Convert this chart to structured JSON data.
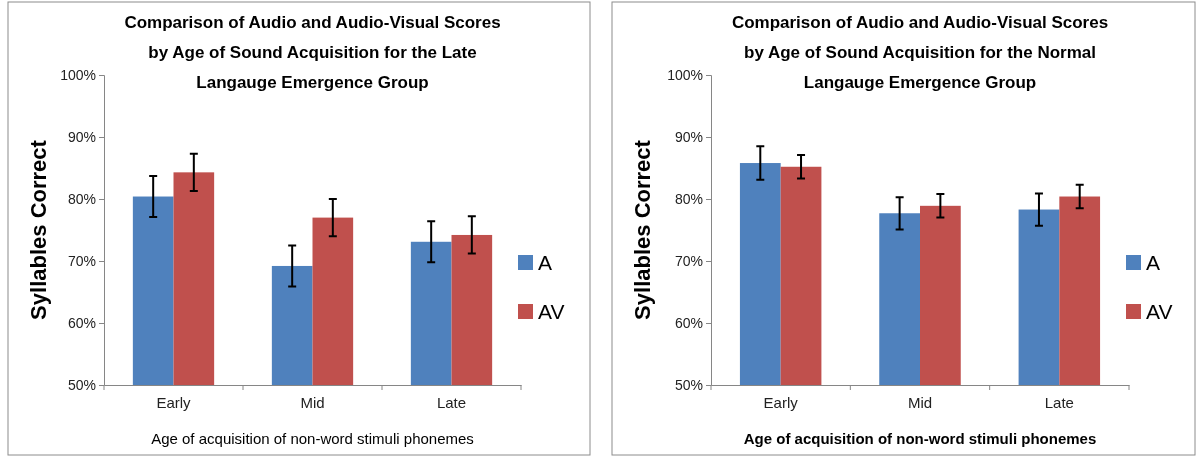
{
  "chart_data": [
    {
      "type": "bar",
      "title": "Comparison of Audio and Audio-Visual Scores by Age of Sound Acquisition for the Late Langauge Emergence Group",
      "xlabel": "Age of acquisition of non-word stimuli phonemes",
      "ylabel": "Syllables Correct",
      "categories": [
        "Early",
        "Mid",
        "Late"
      ],
      "series": [
        {
          "name": "A",
          "color": "#4f81bd",
          "values": [
            80.4,
            69.2,
            73.1
          ],
          "errors": [
            3.3,
            3.3,
            3.3
          ]
        },
        {
          "name": "AV",
          "color": "#c0504d",
          "values": [
            84.3,
            77.0,
            74.2
          ],
          "errors": [
            3.0,
            3.0,
            3.0
          ]
        }
      ],
      "ylim": [
        50,
        100
      ],
      "yticks": [
        {
          "value": 50,
          "label": "50%"
        },
        {
          "value": 60,
          "label": "60%"
        },
        {
          "value": 70,
          "label": "70%"
        },
        {
          "value": 80,
          "label": "80%"
        },
        {
          "value": 90,
          "label": "90%"
        },
        {
          "value": 100,
          "label": "100%"
        }
      ],
      "grid": false,
      "legend": "right"
    },
    {
      "type": "bar",
      "title": "Comparison of Audio and Audio-Visual Scores by Age of Sound Acquisition for the Normal Langauge Emergence Group",
      "xlabel": "Age of acquisition of non-word stimuli phonemes",
      "ylabel": "Syllables Correct",
      "categories": [
        "Early",
        "Mid",
        "Late"
      ],
      "series": [
        {
          "name": "A",
          "color": "#4f81bd",
          "values": [
            85.8,
            77.7,
            78.3
          ],
          "errors": [
            2.7,
            2.6,
            2.6
          ]
        },
        {
          "name": "AV",
          "color": "#c0504d",
          "values": [
            85.2,
            78.9,
            80.4
          ],
          "errors": [
            1.9,
            1.9,
            1.9
          ]
        }
      ],
      "ylim": [
        50,
        100
      ],
      "yticks": [
        {
          "value": 50,
          "label": "50%"
        },
        {
          "value": 60,
          "label": "60%"
        },
        {
          "value": 70,
          "label": "70%"
        },
        {
          "value": 80,
          "label": "80%"
        },
        {
          "value": 90,
          "label": "90%"
        },
        {
          "value": 100,
          "label": "100%"
        }
      ],
      "grid": false,
      "legend": "right"
    }
  ]
}
